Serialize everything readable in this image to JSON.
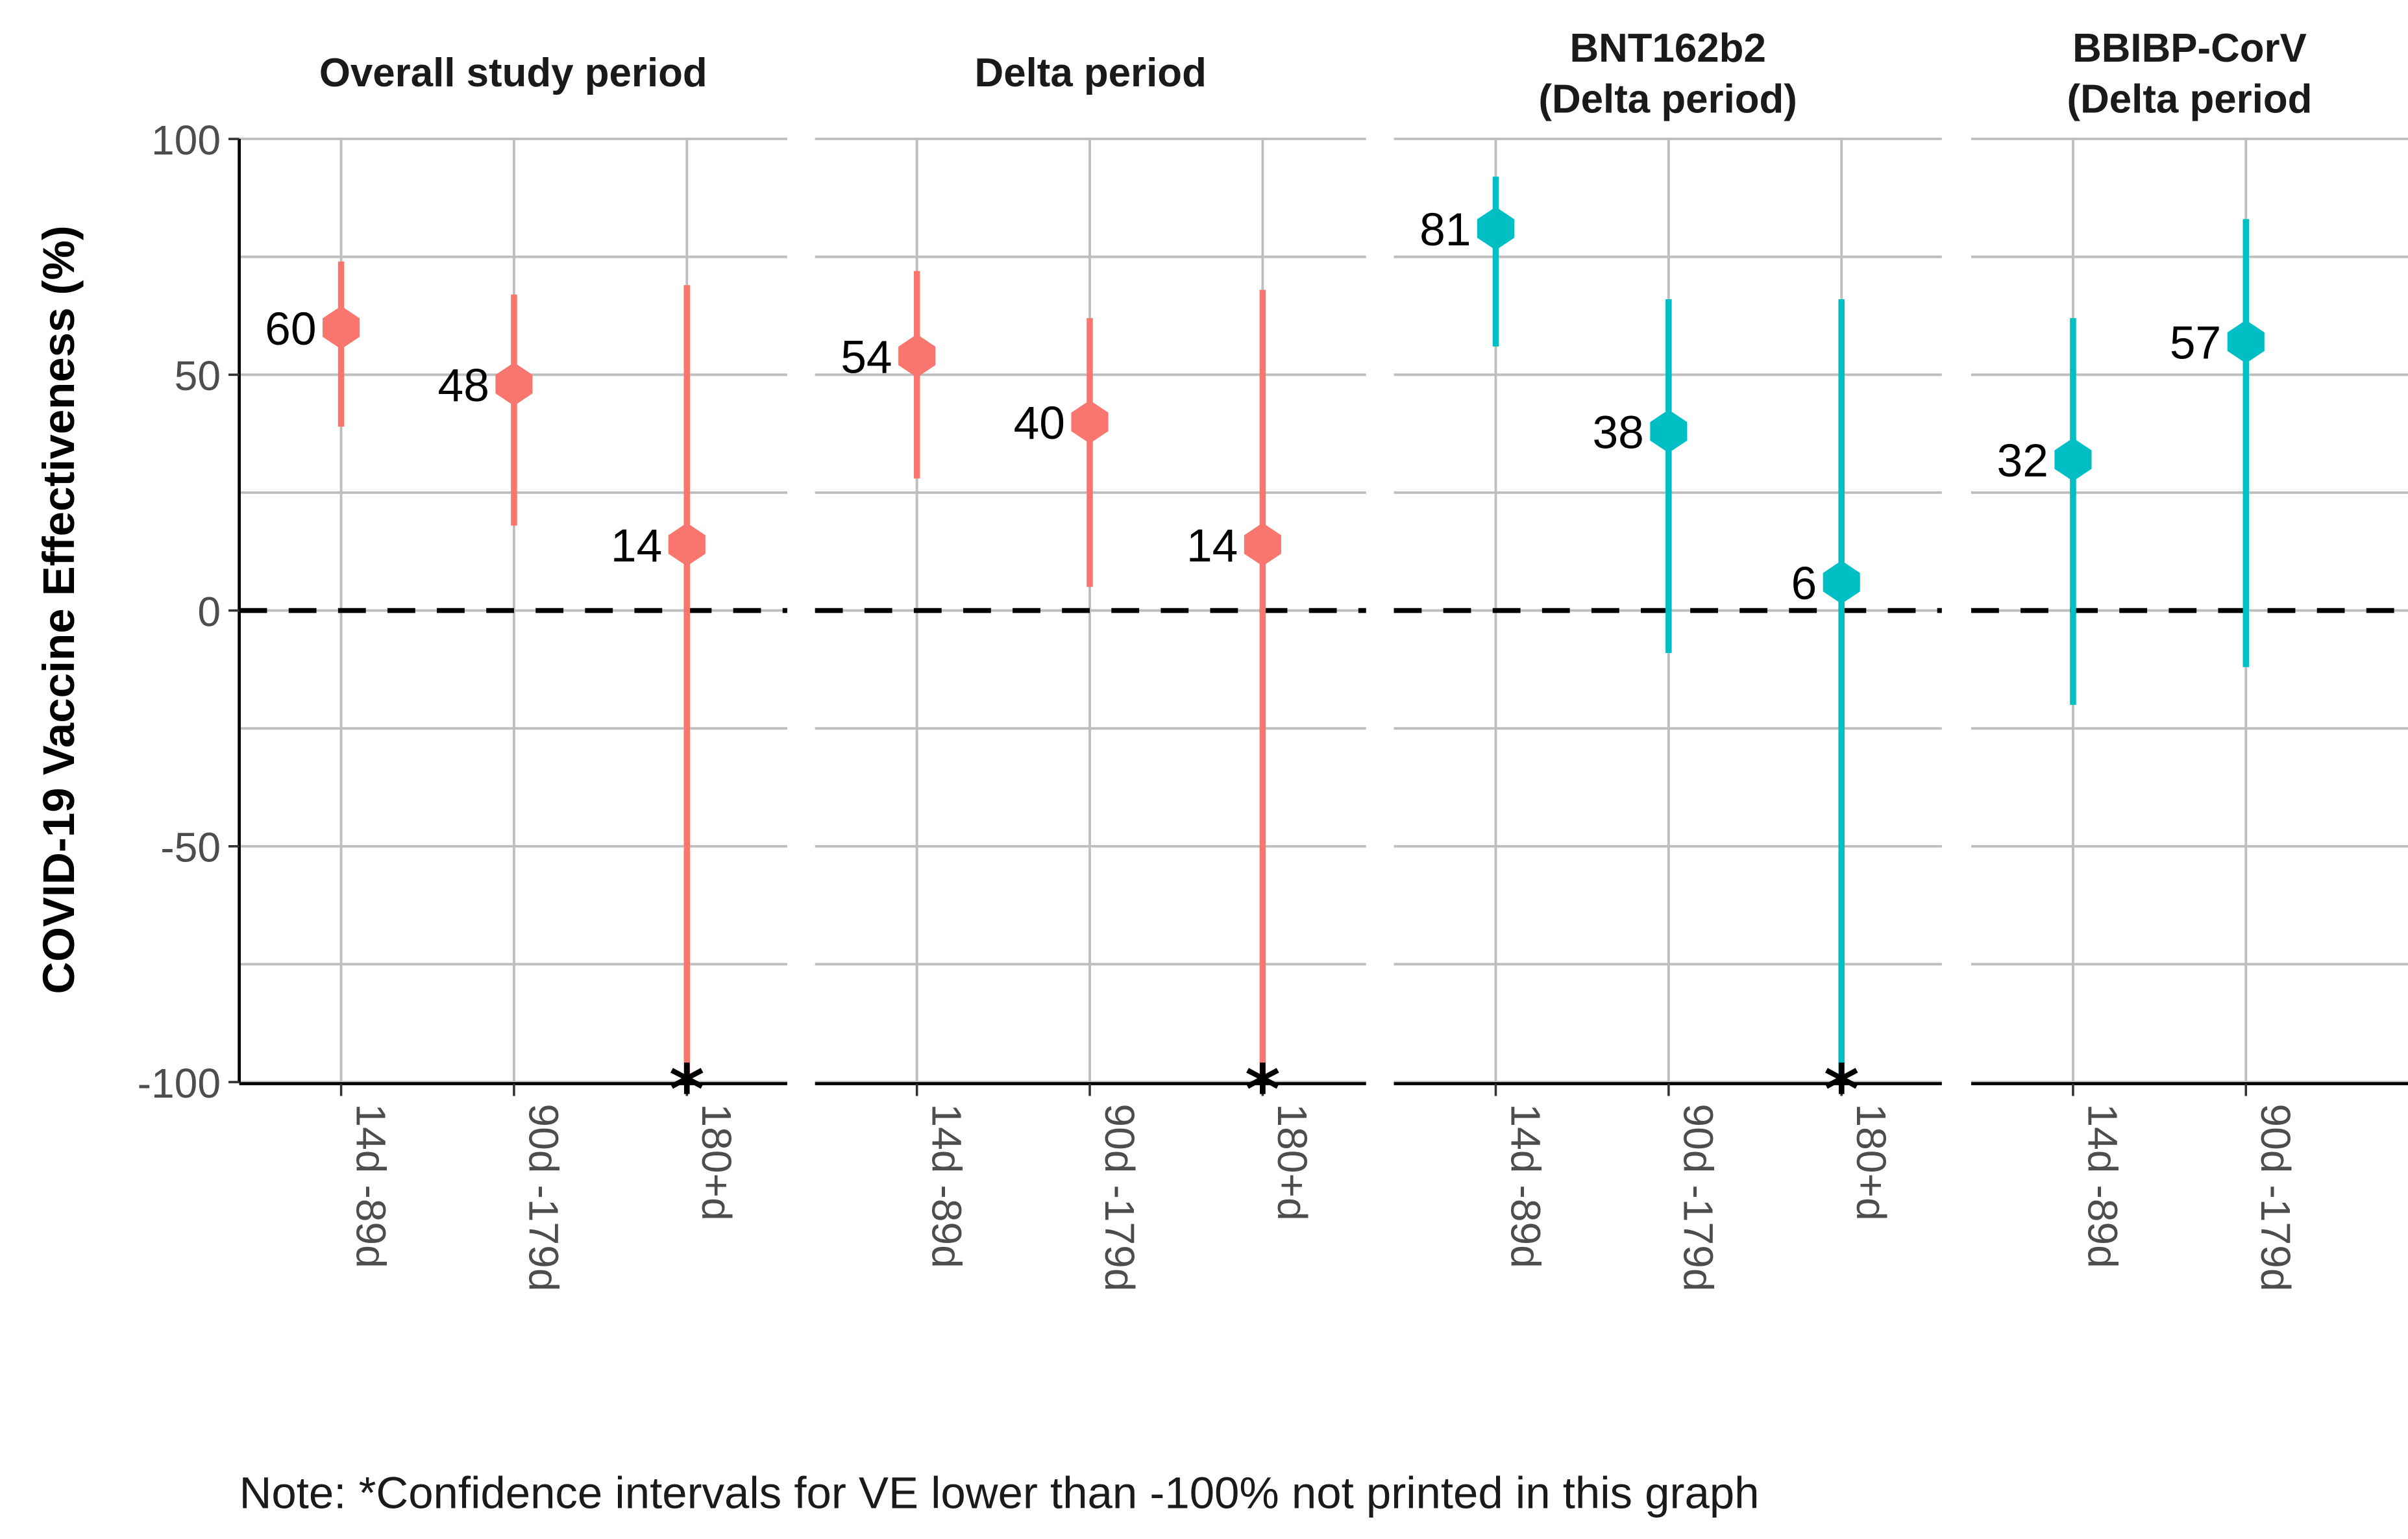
{
  "chart_data": {
    "type": "scatter",
    "subtype": "point-range (estimate with confidence interval), faceted",
    "ylabel": "COVID-19 Vaccine Effectiveness (%)",
    "xlabel": "",
    "ylim": [
      -100,
      100
    ],
    "yticks": [
      100,
      50,
      0,
      -50,
      -100
    ],
    "ytick_labels": [
      "100",
      "50",
      "0",
      "-50",
      "-100"
    ],
    "grid": true,
    "reference_line": {
      "y": 0,
      "style": "dashed",
      "color": "#000000"
    },
    "colors": {
      "overall_or_delta": "#F8766D",
      "vaccine_specific": "#00BFC4"
    },
    "note": "Note: *Confidence intervals for VE lower than -100% not printed in this graph",
    "truncation_marker": "*",
    "panels": [
      {
        "title": [
          "Overall study period"
        ],
        "color": "#F8766D",
        "categories": [
          "14d -89d",
          "90d -179d",
          "180+d"
        ],
        "points": [
          {
            "category": "14d -89d",
            "value": 60,
            "lower": 39,
            "upper": 74,
            "truncated": false
          },
          {
            "category": "90d -179d",
            "value": 48,
            "lower": 18,
            "upper": 67,
            "truncated": false
          },
          {
            "category": "180+d",
            "value": 14,
            "lower": -100,
            "upper": 69,
            "truncated": true
          }
        ]
      },
      {
        "title": [
          "Delta period"
        ],
        "color": "#F8766D",
        "categories": [
          "14d -89d",
          "90d -179d",
          "180+d"
        ],
        "points": [
          {
            "category": "14d -89d",
            "value": 54,
            "lower": 28,
            "upper": 72,
            "truncated": false
          },
          {
            "category": "90d -179d",
            "value": 40,
            "lower": 5,
            "upper": 62,
            "truncated": false
          },
          {
            "category": "180+d",
            "value": 14,
            "lower": -100,
            "upper": 68,
            "truncated": true
          }
        ]
      },
      {
        "title": [
          "BNT162b2",
          "(Delta period)"
        ],
        "color": "#00BFC4",
        "categories": [
          "14d -89d",
          "90d -179d",
          "180+d"
        ],
        "points": [
          {
            "category": "14d -89d",
            "value": 81,
            "lower": 56,
            "upper": 92,
            "truncated": false
          },
          {
            "category": "90d -179d",
            "value": 38,
            "lower": -9,
            "upper": 66,
            "truncated": false
          },
          {
            "category": "180+d",
            "value": 6,
            "lower": -100,
            "upper": 66,
            "truncated": true
          }
        ]
      },
      {
        "title": [
          "BBIBP-CorV",
          "(Delta period"
        ],
        "color": "#00BFC4",
        "categories": [
          "14d -89d",
          "90d -179d"
        ],
        "points": [
          {
            "category": "14d -89d",
            "value": 32,
            "lower": -20,
            "upper": 62,
            "truncated": false
          },
          {
            "category": "90d -179d",
            "value": 57,
            "lower": -12,
            "upper": 83,
            "truncated": false
          }
        ]
      }
    ]
  }
}
